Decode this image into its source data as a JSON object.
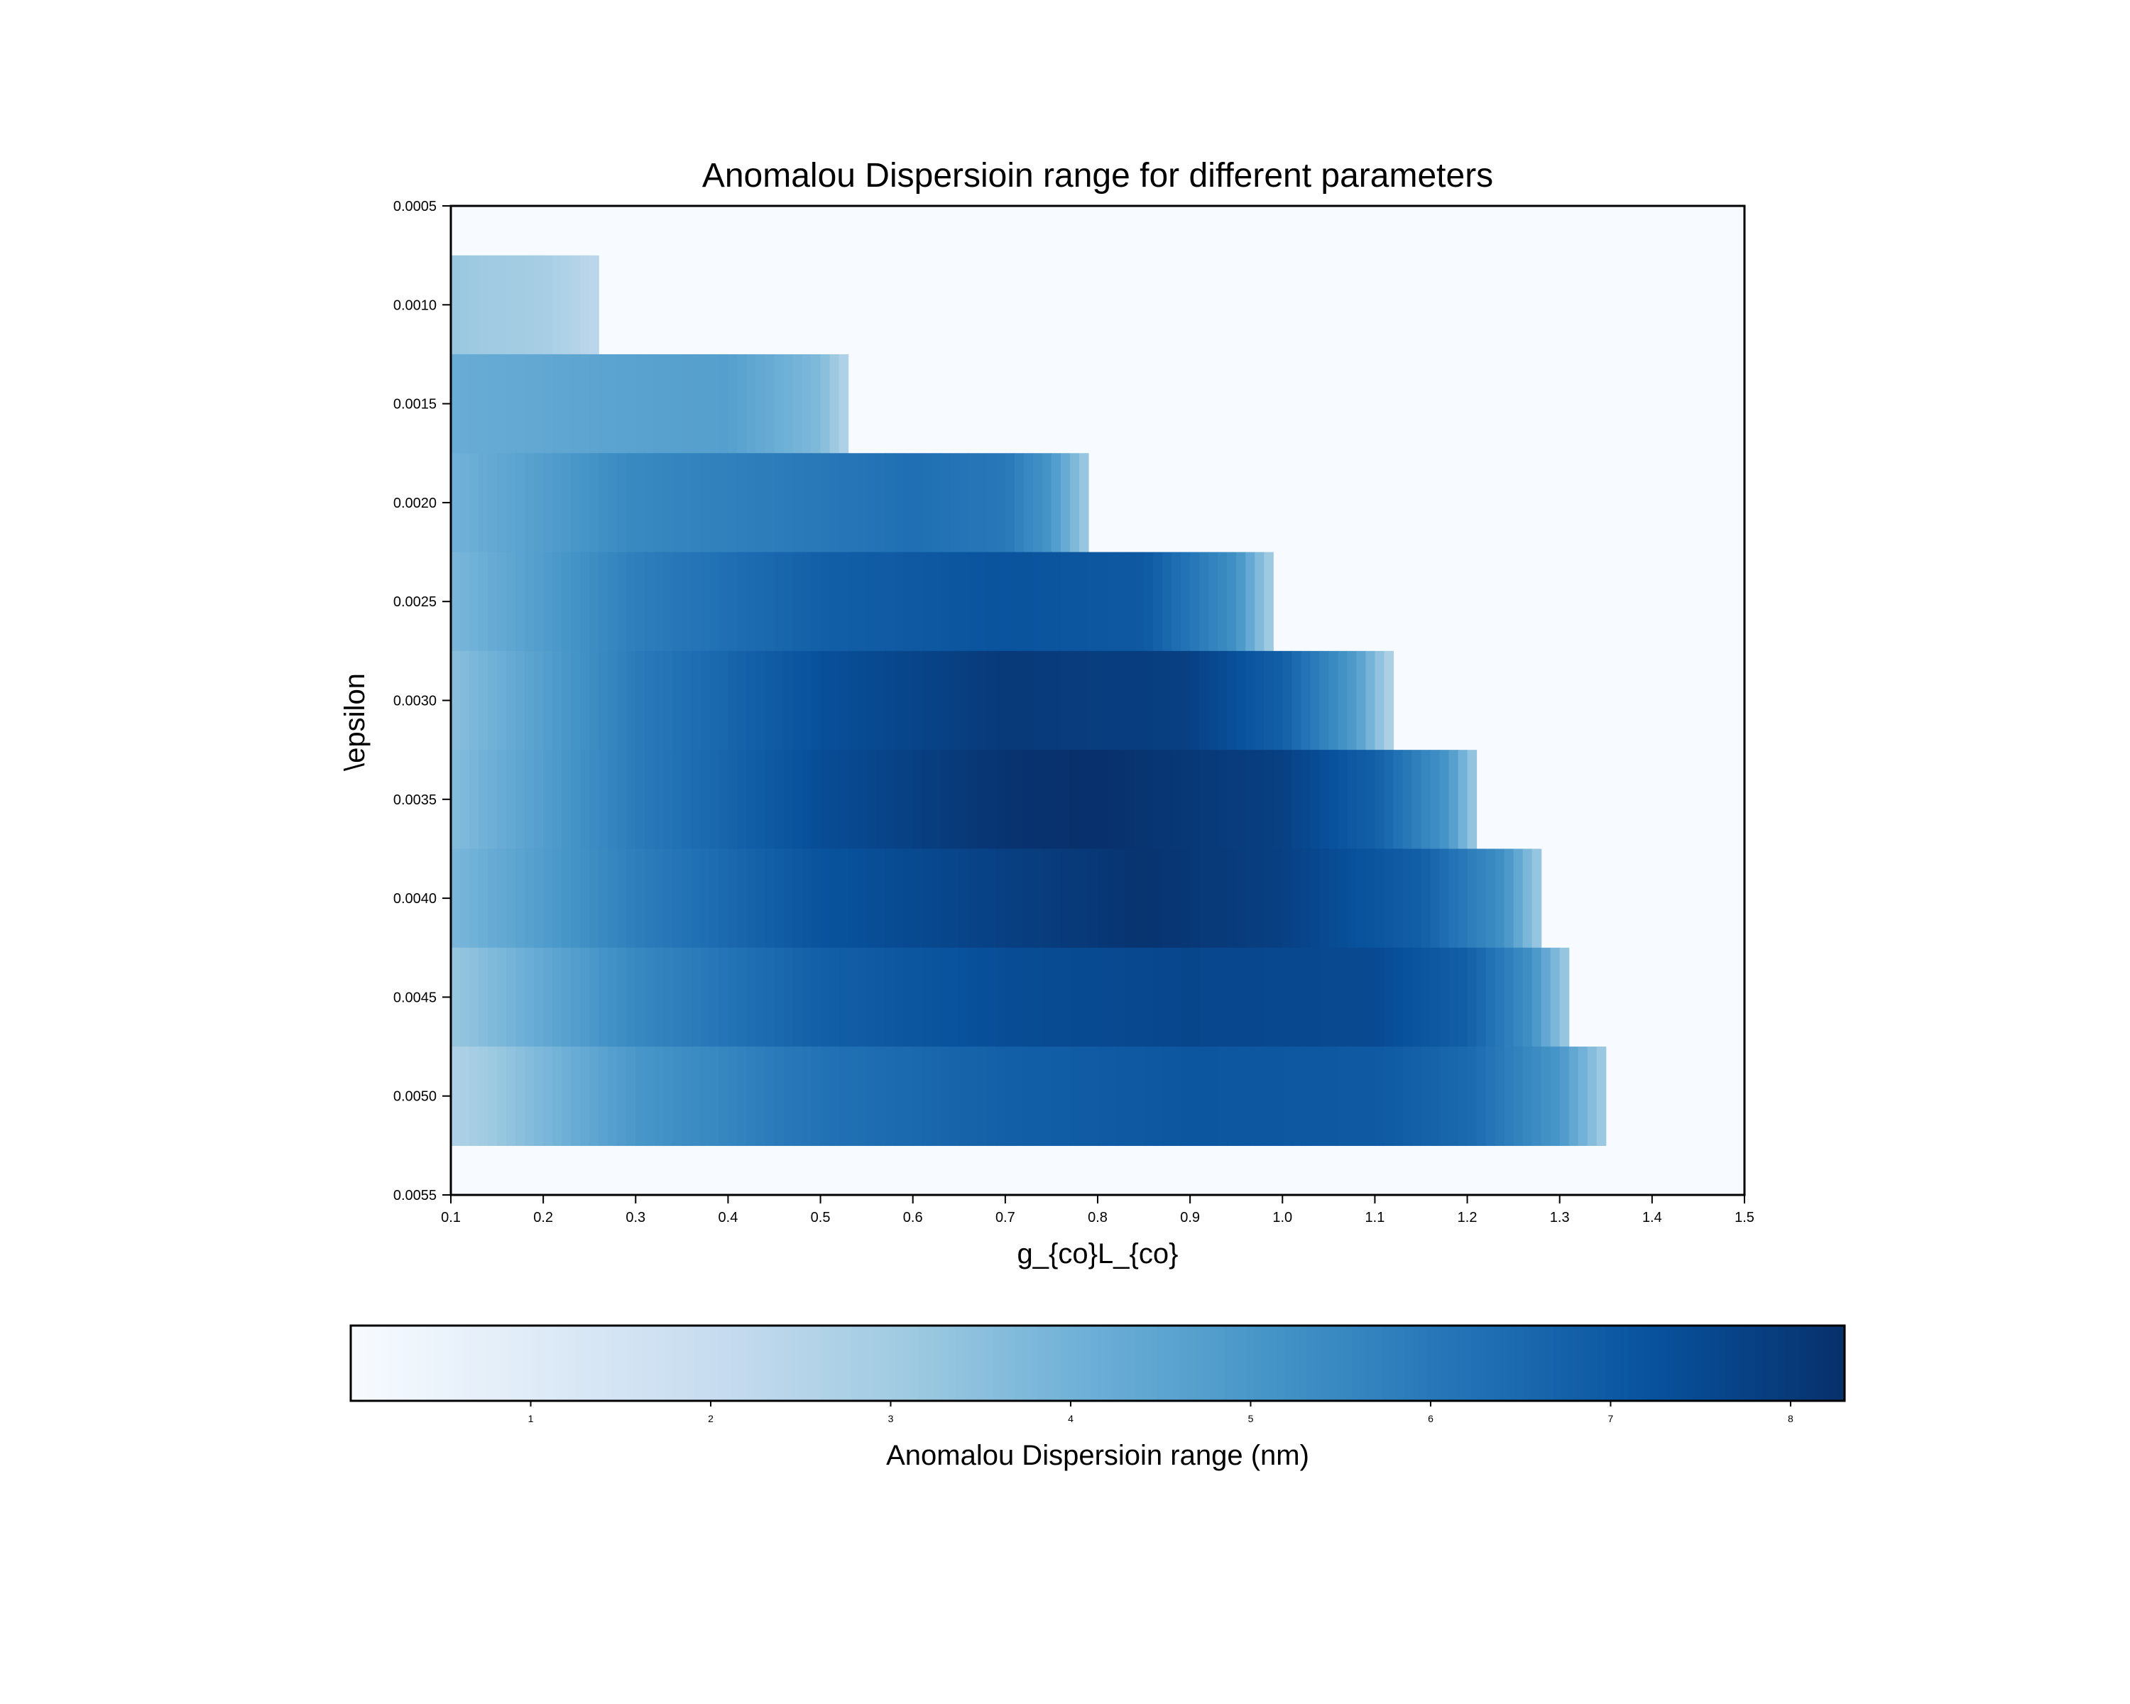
{
  "chart_data": {
    "type": "heatmap",
    "title": "Anomalou Dispersioin range for different parameters",
    "xlabel": "g_{co}L_{co}",
    "ylabel": "\\epsilon",
    "xlim": [
      0.1,
      1.5
    ],
    "ylim": [
      0.0055,
      0.0005
    ],
    "xticks": [
      "0.1",
      "0.2",
      "0.3",
      "0.4",
      "0.5",
      "0.6",
      "0.7",
      "0.8",
      "0.9",
      "1.0",
      "1.1",
      "1.2",
      "1.3",
      "1.4",
      "1.5"
    ],
    "yticks": [
      "0.0005",
      "0.0010",
      "0.0015",
      "0.0020",
      "0.0025",
      "0.0030",
      "0.0035",
      "0.0040",
      "0.0045",
      "0.0050",
      "0.0055"
    ],
    "colorscale": "Blues",
    "colormap_colors": [
      "#f7fbff",
      "#deebf7",
      "#c6dbef",
      "#9ecae1",
      "#6baed6",
      "#4292c6",
      "#2171b5",
      "#08519c",
      "#08306b"
    ],
    "colorbar": {
      "label": "Anomalou Dispersioin range (nm)",
      "range": [
        0,
        8.3
      ],
      "ticks": [
        "1",
        "2",
        "3",
        "4",
        "5",
        "6",
        "7",
        "8"
      ],
      "orientation": "horizontal"
    },
    "rows": [
      {
        "epsilon": 0.0005,
        "x_end": 0.1,
        "edge": 0.0,
        "profile": [
          [
            0.1,
            0.0
          ]
        ]
      },
      {
        "epsilon": 0.001,
        "x_end": 0.26,
        "edge": 1.2,
        "profile": [
          [
            0.1,
            3.2
          ],
          [
            0.2,
            2.9
          ],
          [
            0.26,
            2.3
          ]
        ]
      },
      {
        "epsilon": 0.0015,
        "x_end": 0.53,
        "edge": 1.5,
        "profile": [
          [
            0.1,
            4.2
          ],
          [
            0.3,
            4.6
          ],
          [
            0.4,
            4.7
          ],
          [
            0.5,
            3.7
          ],
          [
            0.53,
            2.5
          ]
        ]
      },
      {
        "epsilon": 0.002,
        "x_end": 0.79,
        "edge": 1.5,
        "profile": [
          [
            0.1,
            4.0
          ],
          [
            0.3,
            5.5
          ],
          [
            0.5,
            6.0
          ],
          [
            0.6,
            6.3
          ],
          [
            0.7,
            6.0
          ],
          [
            0.75,
            5.0
          ],
          [
            0.79,
            3.0
          ]
        ]
      },
      {
        "epsilon": 0.0025,
        "x_end": 0.99,
        "edge": 1.5,
        "profile": [
          [
            0.1,
            3.8
          ],
          [
            0.3,
            5.8
          ],
          [
            0.5,
            6.8
          ],
          [
            0.7,
            7.2
          ],
          [
            0.85,
            7.0
          ],
          [
            0.95,
            5.2
          ],
          [
            0.99,
            2.8
          ]
        ]
      },
      {
        "epsilon": 0.003,
        "x_end": 1.12,
        "edge": 1.5,
        "profile": [
          [
            0.1,
            3.5
          ],
          [
            0.3,
            5.9
          ],
          [
            0.5,
            7.3
          ],
          [
            0.7,
            8.0
          ],
          [
            0.9,
            7.8
          ],
          [
            1.0,
            6.8
          ],
          [
            1.08,
            4.8
          ],
          [
            1.12,
            2.5
          ]
        ]
      },
      {
        "epsilon": 0.0035,
        "x_end": 1.21,
        "edge": 1.5,
        "profile": [
          [
            0.1,
            3.6
          ],
          [
            0.3,
            5.9
          ],
          [
            0.5,
            7.4
          ],
          [
            0.7,
            8.2
          ],
          [
            0.8,
            8.3
          ],
          [
            1.0,
            7.8
          ],
          [
            1.1,
            6.8
          ],
          [
            1.18,
            5.0
          ],
          [
            1.21,
            3.0
          ]
        ]
      },
      {
        "epsilon": 0.004,
        "x_end": 1.28,
        "edge": 1.5,
        "profile": [
          [
            0.1,
            3.8
          ],
          [
            0.3,
            5.8
          ],
          [
            0.5,
            7.2
          ],
          [
            0.7,
            7.8
          ],
          [
            0.85,
            8.2
          ],
          [
            1.0,
            7.8
          ],
          [
            1.15,
            6.8
          ],
          [
            1.24,
            5.2
          ],
          [
            1.28,
            3.0
          ]
        ]
      },
      {
        "epsilon": 0.0045,
        "x_end": 1.31,
        "edge": 1.5,
        "profile": [
          [
            0.1,
            3.2
          ],
          [
            0.3,
            5.5
          ],
          [
            0.5,
            6.8
          ],
          [
            0.7,
            7.4
          ],
          [
            0.9,
            7.6
          ],
          [
            1.1,
            7.5
          ],
          [
            1.2,
            6.8
          ],
          [
            1.27,
            5.2
          ],
          [
            1.31,
            3.0
          ]
        ]
      },
      {
        "epsilon": 0.005,
        "x_end": 1.35,
        "edge": 1.6,
        "profile": [
          [
            0.1,
            2.6
          ],
          [
            0.3,
            5.0
          ],
          [
            0.5,
            6.2
          ],
          [
            0.7,
            6.8
          ],
          [
            0.9,
            7.1
          ],
          [
            1.1,
            7.0
          ],
          [
            1.2,
            6.5
          ],
          [
            1.3,
            5.0
          ],
          [
            1.35,
            3.0
          ]
        ]
      }
    ]
  }
}
